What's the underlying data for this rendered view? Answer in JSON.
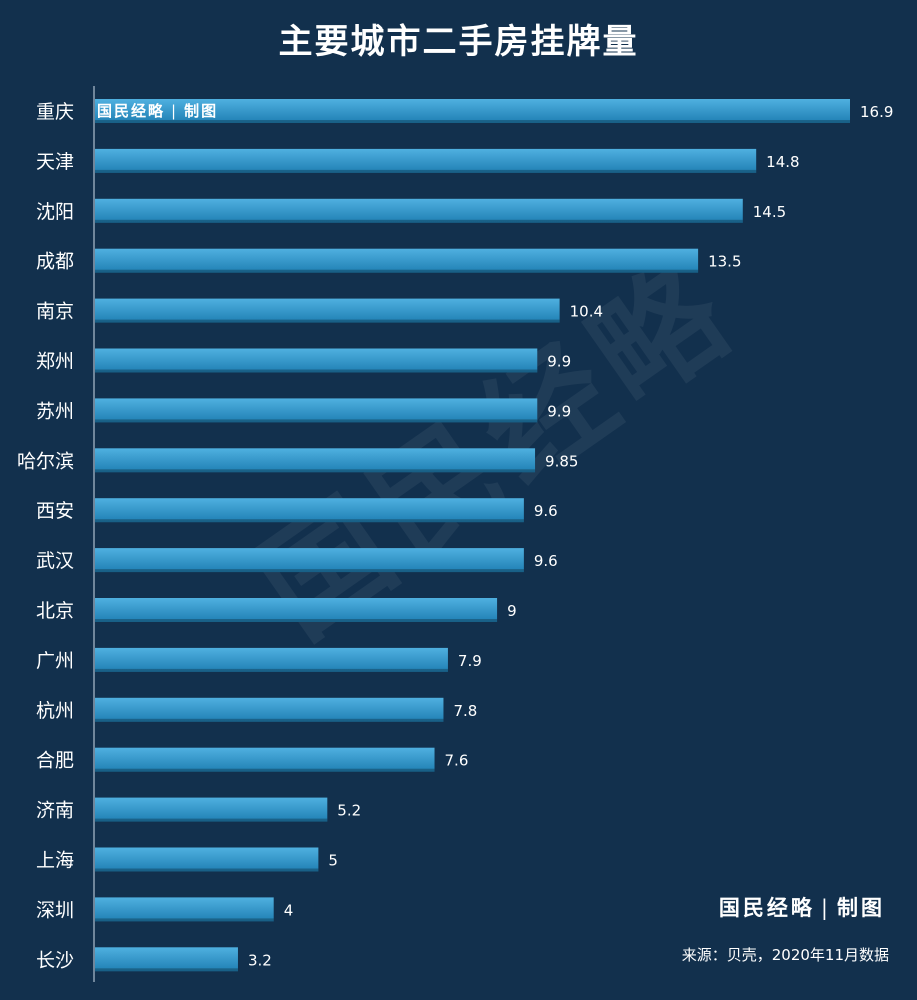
{
  "title": "主要城市二手房挂牌量",
  "watermark": "国民经略",
  "brand": {
    "name": "国民经略",
    "separator": "|",
    "suffix": "制图"
  },
  "source": "来源：贝壳，2020年11月数据",
  "colors": {
    "background": "#12304d",
    "bar_top": "#4fb0e0",
    "bar_bottom": "#1f7fb3",
    "text": "#ffffff",
    "axis": "#8fa3b5"
  },
  "chart_data": {
    "type": "bar",
    "orientation": "horizontal",
    "title": "主要城市二手房挂牌量",
    "categories": [
      "重庆",
      "天津",
      "沈阳",
      "成都",
      "南京",
      "郑州",
      "苏州",
      "哈尔滨",
      "西安",
      "武汉",
      "北京",
      "广州",
      "杭州",
      "合肥",
      "济南",
      "上海",
      "深圳",
      "长沙"
    ],
    "values": [
      16.9,
      14.8,
      14.5,
      13.5,
      10.4,
      9.9,
      9.9,
      9.85,
      9.6,
      9.6,
      9,
      7.9,
      7.8,
      7.6,
      5.2,
      5,
      4,
      3.2
    ],
    "value_labels": [
      "16.9",
      "14.8",
      "14.5",
      "13.5",
      "10.4",
      "9.9",
      "9.9",
      "9.85",
      "9.6",
      "9.6",
      "9",
      "7.9",
      "7.8",
      "7.6",
      "5.2",
      "5",
      "4",
      "3.2"
    ],
    "xlim": [
      0,
      16.9
    ],
    "grid": false,
    "legend": "none"
  }
}
